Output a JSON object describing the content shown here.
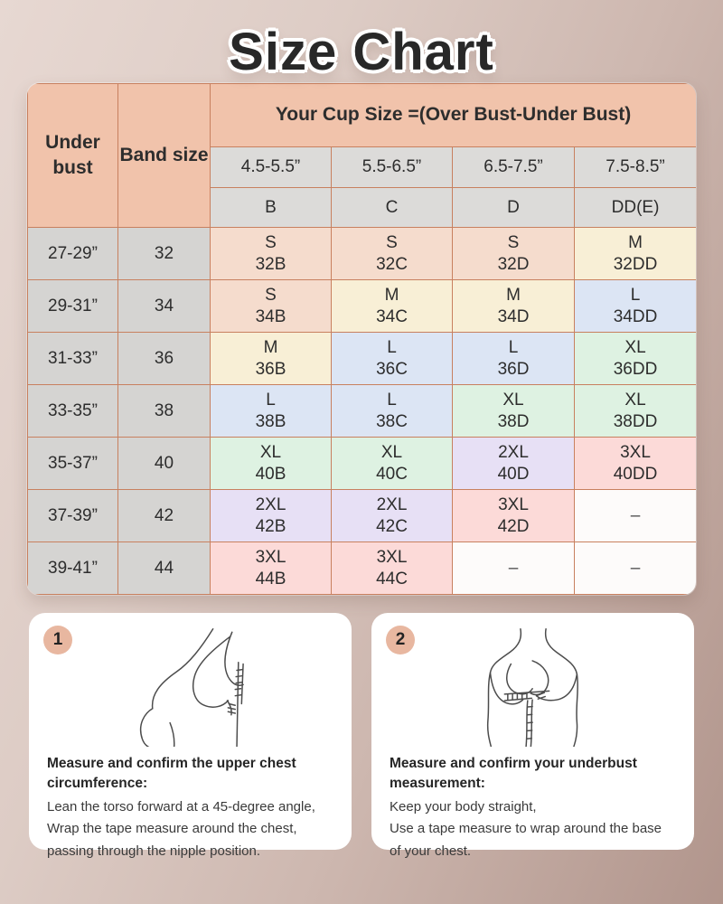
{
  "title": "Size Chart",
  "table": {
    "corner_headers": [
      "Under bust",
      "Band size"
    ],
    "cup_header": "Your Cup Size =(Over Bust-Under Bust)",
    "cup_ranges": [
      "4.5-5.5”",
      "5.5-6.5”",
      "6.5-7.5”",
      "7.5-8.5”"
    ],
    "cup_letters": [
      "B",
      "C",
      "D",
      "DD(E)"
    ],
    "empty_marker": "–",
    "rows": [
      {
        "under_bust": "27-29”",
        "band_size": "32",
        "cells": [
          {
            "size": "S",
            "sku": "32B"
          },
          {
            "size": "S",
            "sku": "32C"
          },
          {
            "size": "S",
            "sku": "32D"
          },
          {
            "size": "M",
            "sku": "32DD"
          }
        ]
      },
      {
        "under_bust": "29-31”",
        "band_size": "34",
        "cells": [
          {
            "size": "S",
            "sku": "34B"
          },
          {
            "size": "M",
            "sku": "34C"
          },
          {
            "size": "M",
            "sku": "34D"
          },
          {
            "size": "L",
            "sku": "34DD"
          }
        ]
      },
      {
        "under_bust": "31-33”",
        "band_size": "36",
        "cells": [
          {
            "size": "M",
            "sku": "36B"
          },
          {
            "size": "L",
            "sku": "36C"
          },
          {
            "size": "L",
            "sku": "36D"
          },
          {
            "size": "XL",
            "sku": "36DD"
          }
        ]
      },
      {
        "under_bust": "33-35”",
        "band_size": "38",
        "cells": [
          {
            "size": "L",
            "sku": "38B"
          },
          {
            "size": "L",
            "sku": "38C"
          },
          {
            "size": "XL",
            "sku": "38D"
          },
          {
            "size": "XL",
            "sku": "38DD"
          }
        ]
      },
      {
        "under_bust": "35-37”",
        "band_size": "40",
        "cells": [
          {
            "size": "XL",
            "sku": "40B"
          },
          {
            "size": "XL",
            "sku": "40C"
          },
          {
            "size": "2XL",
            "sku": "40D"
          },
          {
            "size": "3XL",
            "sku": "40DD"
          }
        ]
      },
      {
        "under_bust": "37-39”",
        "band_size": "42",
        "cells": [
          {
            "size": "2XL",
            "sku": "42B"
          },
          {
            "size": "2XL",
            "sku": "42C"
          },
          {
            "size": "3XL",
            "sku": "42D"
          },
          null
        ]
      },
      {
        "under_bust": "39-41”",
        "band_size": "44",
        "cells": [
          {
            "size": "3XL",
            "sku": "44B"
          },
          {
            "size": "3XL",
            "sku": "44C"
          },
          null,
          null
        ]
      }
    ]
  },
  "size_colors": {
    "S": "#f5dccd",
    "M": "#f8efd6",
    "L": "#dce5f4",
    "XL": "#def2e2",
    "2XL": "#e7e0f5",
    "3XL": "#fcdad8",
    "empty": "#fdfbfa"
  },
  "theme": {
    "header_bg": "#f1c3ab",
    "subheader_bg": "#dcdbd9",
    "row_header_bg": "#d5d4d2",
    "table_border": "#c8805f",
    "badge_bg": "#e8b7a0",
    "title_color": "#282828",
    "background_gradient": [
      "#e7d8d2",
      "#b1958c"
    ]
  },
  "instructions": [
    {
      "number": "1",
      "illustration": "lean-forward-upper-chest-measuring-figure",
      "heading": "Measure and confirm the upper chest circumference:",
      "lines": [
        "Lean the torso forward at a 45-degree angle,",
        "Wrap the tape measure around the chest,",
        "passing through the nipple position."
      ]
    },
    {
      "number": "2",
      "illustration": "standing-underbust-measuring-figure",
      "heading": "Measure and confirm your underbust measurement:",
      "lines": [
        "Keep your body straight,",
        "Use a tape measure to wrap around the base of your chest."
      ]
    }
  ]
}
